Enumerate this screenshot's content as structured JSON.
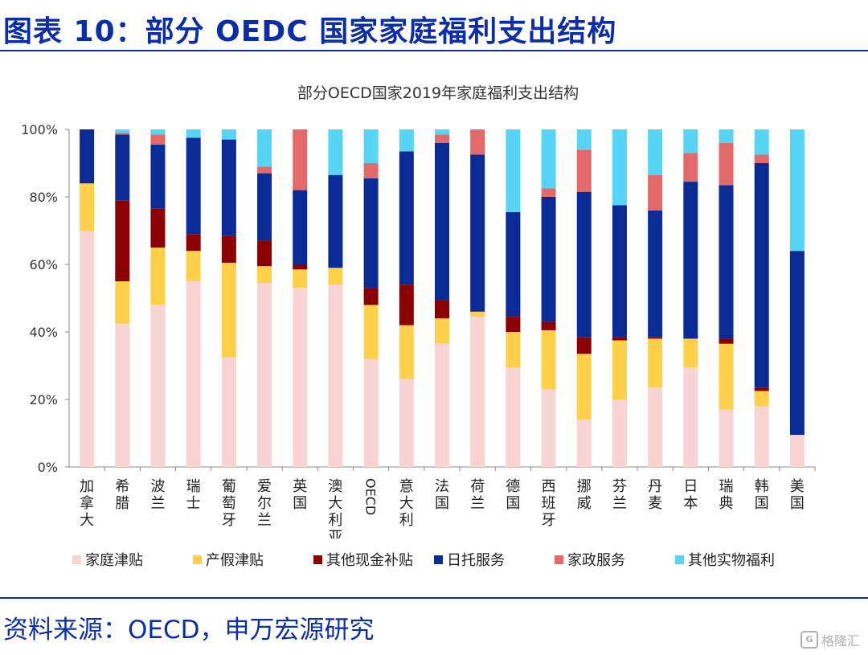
{
  "header": {
    "title": "图表 10：部分 OEDC 国家家庭福利支出结构"
  },
  "footer": {
    "source": "资料来源：OECD，申万宏源研究",
    "watermark": "格隆汇",
    "watermark_logo": "G"
  },
  "chart_data": {
    "type": "bar",
    "stacked": true,
    "title": "部分OECD国家2019年家庭福利支出结构",
    "ylim": [
      0,
      100
    ],
    "yticks": [
      "0%",
      "20%",
      "40%",
      "60%",
      "80%",
      "100%"
    ],
    "categories": [
      "加拿大",
      "希腊",
      "波兰",
      "瑞士",
      "葡萄牙",
      "爱尔兰",
      "英国",
      "澳大利亚",
      "OECD",
      "意大利",
      "法国",
      "荷兰",
      "德国",
      "西班牙",
      "挪威",
      "芬兰",
      "丹麦",
      "日本",
      "瑞典",
      "韩国",
      "美国"
    ],
    "series": [
      {
        "name": "家庭津贴",
        "color": "#f9d4d4",
        "values": [
          70,
          42.5,
          48,
          55,
          32.5,
          54.5,
          53,
          54,
          32,
          26,
          36.5,
          44.5,
          29.5,
          23,
          14,
          20,
          23.5,
          29.5,
          17,
          18,
          9.5
        ]
      },
      {
        "name": "产假津贴",
        "color": "#ffd04a",
        "values": [
          14,
          12.5,
          17,
          9,
          28,
          5,
          5.5,
          5,
          16,
          16,
          7.5,
          1.5,
          10.5,
          17.5,
          19.5,
          17.5,
          14.5,
          8.5,
          19.5,
          4.5,
          0
        ]
      },
      {
        "name": "其他现金补贴",
        "color": "#8b0000",
        "values": [
          0,
          24,
          11.5,
          5,
          8,
          7.5,
          1.5,
          0,
          5,
          12,
          5.5,
          0,
          4.5,
          2.5,
          5,
          1,
          0.5,
          0,
          1.5,
          1,
          0
        ]
      },
      {
        "name": "日托服务",
        "color": "#0a2a96",
        "values": [
          16,
          19.5,
          19,
          28.5,
          28.5,
          20,
          22,
          27.5,
          32.5,
          39.5,
          46.5,
          46.5,
          31,
          37,
          43,
          39,
          37.5,
          46.5,
          45.5,
          66.5,
          54.5
        ]
      },
      {
        "name": "家政服务",
        "color": "#e26a6a",
        "values": [
          0,
          0.5,
          3,
          0,
          0,
          2,
          18,
          0,
          4.5,
          0,
          2.5,
          7.5,
          0,
          2.5,
          12.5,
          0,
          10.5,
          8.5,
          12.5,
          2.5,
          0
        ]
      },
      {
        "name": "其他实物福利",
        "color": "#56d5f7",
        "values": [
          0,
          1,
          1.5,
          2.5,
          3,
          11,
          0,
          13.5,
          10,
          6.5,
          1.5,
          0,
          24.5,
          17.5,
          6,
          22.5,
          13.5,
          7,
          4,
          7.5,
          36
        ]
      }
    ]
  }
}
